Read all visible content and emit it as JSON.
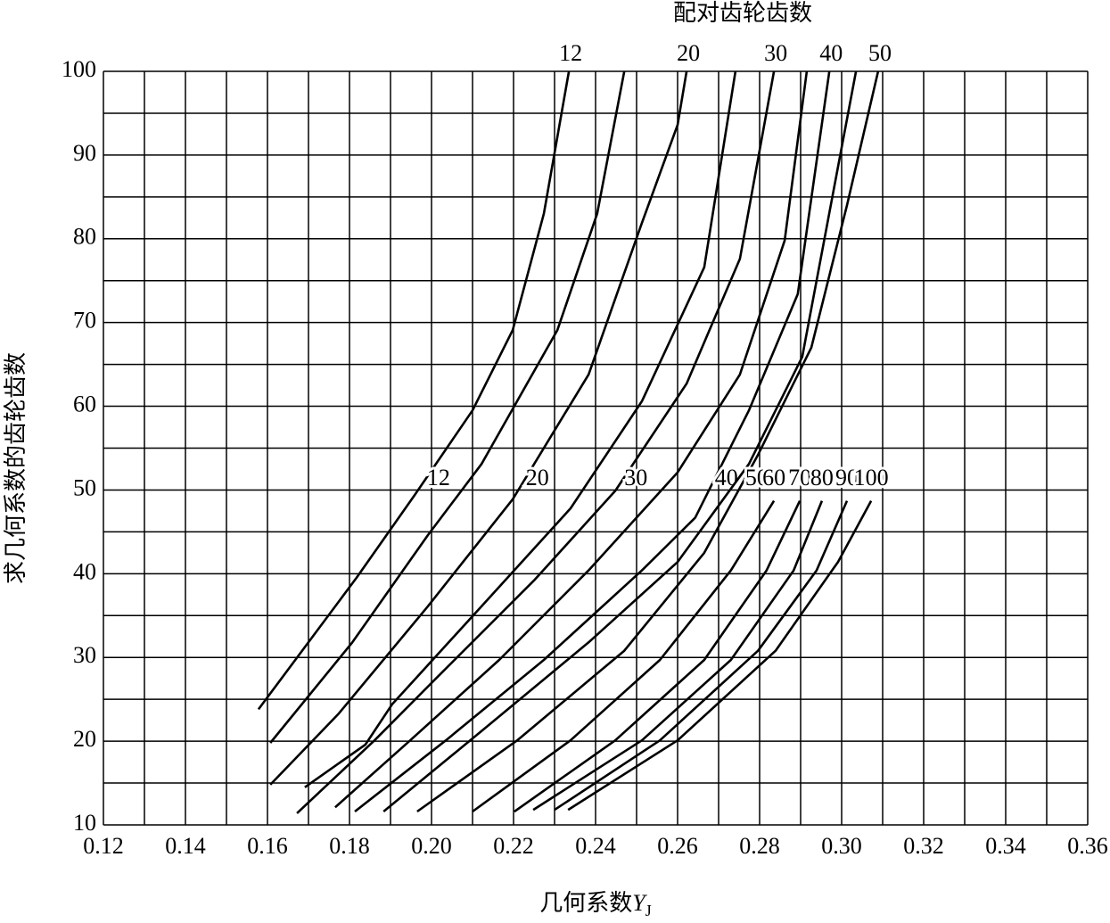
{
  "chart_data": {
    "type": "line",
    "title": "配对齿轮齿数",
    "y_label": "求几何系数的齿轮齿数",
    "x_label": {
      "text": "几何系数",
      "symbol": "Y",
      "subscript": "J"
    },
    "xlim": [
      0.12,
      0.36
    ],
    "ylim": [
      10,
      100
    ],
    "xticks": [
      0.12,
      0.14,
      0.16,
      0.18,
      {
        "value": 0.2,
        "label": "0.20"
      },
      0.22,
      0.24,
      0.26,
      0.28,
      {
        "value": 0.3,
        "label": "0.30"
      },
      0.32,
      0.34,
      0.36
    ],
    "yticks": [
      10,
      20,
      30,
      40,
      50,
      60,
      70,
      80,
      90,
      100
    ],
    "x_minor_grid": [
      0.13,
      0.15,
      0.17,
      0.19,
      0.21,
      0.23,
      0.25,
      0.27,
      0.29,
      0.31,
      0.33,
      0.35
    ],
    "y_minor_grid": [
      15,
      25,
      35,
      45,
      55,
      65,
      75,
      85,
      95
    ],
    "grid": true,
    "color": "#000000",
    "series": [
      {
        "name": "12",
        "x": [
          0.1578,
          0.1817,
          0.1959,
          0.21,
          0.2198,
          0.2274,
          0.2335
        ],
        "values": [
          23.8,
          39.5,
          49.4,
          59.5,
          69.1,
          83,
          100
        ]
      },
      {
        "x": [
          0.1607,
          0.1807,
          0.1991,
          0.2122,
          0.2307,
          0.2404,
          0.247
        ],
        "values": [
          19.8,
          31.8,
          44.6,
          53.1,
          69.1,
          83,
          100
        ]
      },
      {
        "name": "20",
        "x": [
          0.1607,
          0.1774,
          0.1991,
          0.2198,
          0.2383,
          0.2513,
          0.26,
          0.2622
        ],
        "values": [
          14.8,
          23.3,
          36.1,
          48.9,
          63.8,
          81.9,
          93.6,
          100
        ]
      },
      {
        "x": [
          0.1691,
          0.1839,
          0.1904,
          0.2122,
          0.2339,
          0.2513,
          0.2665,
          0.2741
        ],
        "values": [
          14.5,
          19.6,
          24.4,
          36.1,
          47.8,
          60.6,
          76.6,
          100
        ]
      },
      {
        "name": "30",
        "x": [
          0.1672,
          0.1861,
          0.2013,
          0.2252,
          0.2448,
          0.2622,
          0.2752,
          0.2835
        ],
        "values": [
          11.4,
          20.1,
          27.6,
          39.3,
          49.9,
          62.7,
          77.6,
          100
        ]
      },
      {
        "x": [
          0.1765,
          0.1948,
          0.2165,
          0.2383,
          0.26,
          0.2752,
          0.2861,
          0.2915
        ],
        "values": [
          12.1,
          20.1,
          29.7,
          40.4,
          52.1,
          63.8,
          79.8,
          100
        ]
      },
      {
        "name": "40",
        "x": [
          0.1813,
          0.2035,
          0.2274,
          0.2513,
          0.2643,
          0.2774,
          0.2893,
          0.297
        ],
        "values": [
          11.6,
          20.1,
          29.7,
          40.4,
          46.7,
          59.5,
          73.4,
          100
        ]
      },
      {
        "x": [
          0.1883,
          0.2122,
          0.2383,
          0.26,
          0.2774,
          0.2904,
          0.3035
        ],
        "values": [
          11.6,
          21.2,
          31.8,
          41.4,
          53.1,
          65.9,
          100
        ]
      },
      {
        "name": "50",
        "x": [
          0.1965,
          0.2209,
          0.247,
          0.2665,
          0.2796,
          0.2926,
          0.3013,
          0.3089
        ],
        "values": [
          11.6,
          20.1,
          30.8,
          42.5,
          54.2,
          67,
          84,
          100
        ]
      },
      {
        "name": "60",
        "x": [
          0.21,
          0.2339,
          0.2557,
          0.273,
          0.2835
        ],
        "values": [
          11.6,
          20.1,
          29.7,
          40.4,
          48.7
        ]
      },
      {
        "name": "70",
        "x": [
          0.2202,
          0.2448,
          0.2665,
          0.2817,
          0.2898
        ],
        "values": [
          11.6,
          20.1,
          29.7,
          40.4,
          48.7
        ]
      },
      {
        "name": "80",
        "x": [
          0.2248,
          0.2513,
          0.273,
          0.2883,
          0.2952
        ],
        "values": [
          11.8,
          20.1,
          29.7,
          40.4,
          48.7
        ]
      },
      {
        "name": "90",
        "x": [
          0.23,
          0.2557,
          0.2796,
          0.2939,
          0.3013
        ],
        "values": [
          11.8,
          20.1,
          30.8,
          40.4,
          48.7
        ]
      },
      {
        "name": "100",
        "x": [
          0.2333,
          0.26,
          0.2839,
          0.2991,
          0.3072
        ],
        "values": [
          11.8,
          20.1,
          30.8,
          41.4,
          48.7
        ]
      }
    ]
  }
}
